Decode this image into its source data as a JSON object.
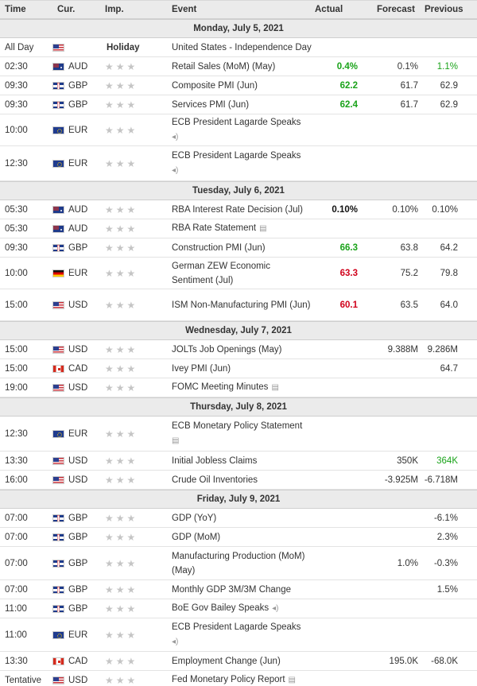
{
  "header": {
    "time": "Time",
    "cur": "Cur.",
    "imp": "Imp.",
    "event": "Event",
    "actual": "Actual",
    "forecast": "Forecast",
    "previous": "Previous"
  },
  "days": [
    {
      "label": "Monday, July 5, 2021",
      "rows": [
        {
          "time": "All Day",
          "flag": "us",
          "cur": "",
          "holiday": "Holiday",
          "event": "United States - Independence Day",
          "actual": "",
          "actual_style": "",
          "forecast": "",
          "previous": "",
          "prev_style": "",
          "icon": "",
          "h": 24
        },
        {
          "time": "02:30",
          "flag": "au",
          "cur": "AUD",
          "event": "Retail Sales (MoM) (May)",
          "actual": "0.4%",
          "actual_style": "green",
          "forecast": "0.1%",
          "previous": "1.1%",
          "prev_style": "green-plain",
          "icon": "",
          "h": 24
        },
        {
          "time": "09:30",
          "flag": "gb",
          "cur": "GBP",
          "event": "Composite PMI (Jun)",
          "actual": "62.2",
          "actual_style": "green",
          "forecast": "61.7",
          "previous": "62.9",
          "prev_style": "",
          "icon": "",
          "h": 24
        },
        {
          "time": "09:30",
          "flag": "gb",
          "cur": "GBP",
          "event": "Services PMI (Jun)",
          "actual": "62.4",
          "actual_style": "green",
          "forecast": "61.7",
          "previous": "62.9",
          "prev_style": "",
          "icon": "",
          "h": 24
        },
        {
          "time": "10:00",
          "flag": "eu",
          "cur": "EUR",
          "event": "ECB President Lagarde Speaks",
          "actual": "",
          "actual_style": "",
          "forecast": "",
          "previous": "",
          "prev_style": "",
          "icon": "speaker",
          "h": 40
        },
        {
          "time": "12:30",
          "flag": "eu",
          "cur": "EUR",
          "event": "ECB President Lagarde Speaks",
          "actual": "",
          "actual_style": "",
          "forecast": "",
          "previous": "",
          "prev_style": "",
          "icon": "speaker",
          "h": 44
        }
      ]
    },
    {
      "label": "Tuesday, July 6, 2021",
      "rows": [
        {
          "time": "05:30",
          "flag": "au",
          "cur": "AUD",
          "event": "RBA Interest Rate Decision (Jul)",
          "actual": "0.10%",
          "actual_style": "bold",
          "forecast": "0.10%",
          "previous": "0.10%",
          "prev_style": "",
          "icon": "",
          "h": 24
        },
        {
          "time": "05:30",
          "flag": "au",
          "cur": "AUD",
          "event": "RBA Rate Statement",
          "actual": "",
          "actual_style": "",
          "forecast": "",
          "previous": "",
          "prev_style": "",
          "icon": "doc",
          "h": 24
        },
        {
          "time": "09:30",
          "flag": "gb",
          "cur": "GBP",
          "event": "Construction PMI (Jun)",
          "actual": "66.3",
          "actual_style": "green",
          "forecast": "63.8",
          "previous": "64.2",
          "prev_style": "",
          "icon": "",
          "h": 24
        },
        {
          "time": "10:00",
          "flag": "de",
          "cur": "EUR",
          "event": "German ZEW Economic Sentiment (Jul)",
          "actual": "63.3",
          "actual_style": "red",
          "forecast": "75.2",
          "previous": "79.8",
          "prev_style": "",
          "icon": "",
          "h": 40
        },
        {
          "time": "15:00",
          "flag": "us",
          "cur": "USD",
          "event": "ISM Non-Manufacturing PMI (Jun)",
          "actual": "60.1",
          "actual_style": "red",
          "forecast": "63.5",
          "previous": "64.0",
          "prev_style": "",
          "icon": "",
          "h": 40
        }
      ]
    },
    {
      "label": "Wednesday, July 7, 2021",
      "rows": [
        {
          "time": "15:00",
          "flag": "us",
          "cur": "USD",
          "event": "JOLTs Job Openings (May)",
          "actual": "",
          "actual_style": "",
          "forecast": "9.388M",
          "previous": "9.286M",
          "prev_style": "",
          "icon": "",
          "h": 24
        },
        {
          "time": "15:00",
          "flag": "ca",
          "cur": "CAD",
          "event": "Ivey PMI (Jun)",
          "actual": "",
          "actual_style": "",
          "forecast": "",
          "previous": "64.7",
          "prev_style": "",
          "icon": "",
          "h": 24
        },
        {
          "time": "19:00",
          "flag": "us",
          "cur": "USD",
          "event": "FOMC Meeting Minutes",
          "actual": "",
          "actual_style": "",
          "forecast": "",
          "previous": "",
          "prev_style": "",
          "icon": "doc",
          "h": 24
        }
      ]
    },
    {
      "label": "Thursday, July 8, 2021",
      "rows": [
        {
          "time": "12:30",
          "flag": "eu",
          "cur": "EUR",
          "event": "ECB Monetary Policy Statement",
          "actual": "",
          "actual_style": "",
          "forecast": "",
          "previous": "",
          "prev_style": "",
          "icon": "doc",
          "h": 44
        },
        {
          "time": "13:30",
          "flag": "us",
          "cur": "USD",
          "event": "Initial Jobless Claims",
          "actual": "",
          "actual_style": "",
          "forecast": "350K",
          "previous": "364K",
          "prev_style": "green-plain",
          "icon": "",
          "h": 24
        },
        {
          "time": "16:00",
          "flag": "us",
          "cur": "USD",
          "event": "Crude Oil Inventories",
          "actual": "",
          "actual_style": "",
          "forecast": "-3.925M",
          "previous": "-6.718M",
          "prev_style": "",
          "icon": "",
          "h": 24
        }
      ]
    },
    {
      "label": "Friday, July 9, 2021",
      "rows": [
        {
          "time": "07:00",
          "flag": "gb",
          "cur": "GBP",
          "event": "GDP (YoY)",
          "actual": "",
          "actual_style": "",
          "forecast": "",
          "previous": "-6.1%",
          "prev_style": "",
          "icon": "",
          "h": 24
        },
        {
          "time": "07:00",
          "flag": "gb",
          "cur": "GBP",
          "event": "GDP (MoM)",
          "actual": "",
          "actual_style": "",
          "forecast": "",
          "previous": "2.3%",
          "prev_style": "",
          "icon": "",
          "h": 24
        },
        {
          "time": "07:00",
          "flag": "gb",
          "cur": "GBP",
          "event": "Manufacturing Production (MoM) (May)",
          "actual": "",
          "actual_style": "",
          "forecast": "1.0%",
          "previous": "-0.3%",
          "prev_style": "",
          "icon": "",
          "h": 42
        },
        {
          "time": "07:00",
          "flag": "gb",
          "cur": "GBP",
          "event": "Monthly GDP 3M/3M Change",
          "actual": "",
          "actual_style": "",
          "forecast": "",
          "previous": "1.5%",
          "prev_style": "",
          "icon": "",
          "h": 24
        },
        {
          "time": "11:00",
          "flag": "gb",
          "cur": "GBP",
          "event": "BoE Gov Bailey Speaks",
          "actual": "",
          "actual_style": "",
          "forecast": "",
          "previous": "",
          "prev_style": "",
          "icon": "speaker",
          "h": 24
        },
        {
          "time": "11:00",
          "flag": "eu",
          "cur": "EUR",
          "event": "ECB President Lagarde Speaks",
          "actual": "",
          "actual_style": "",
          "forecast": "",
          "previous": "",
          "prev_style": "",
          "icon": "speaker",
          "h": 42
        },
        {
          "time": "13:30",
          "flag": "ca",
          "cur": "CAD",
          "event": "Employment Change (Jun)",
          "actual": "",
          "actual_style": "",
          "forecast": "195.0K",
          "previous": "-68.0K",
          "prev_style": "",
          "icon": "",
          "h": 24
        },
        {
          "time": "Tentative",
          "flag": "us",
          "cur": "USD",
          "event": "Fed Monetary Policy Report",
          "actual": "",
          "actual_style": "",
          "forecast": "",
          "previous": "",
          "prev_style": "",
          "icon": "doc",
          "h": 24
        }
      ]
    }
  ],
  "icons": {
    "speaker": "speaker-icon",
    "doc": "document-icon",
    "star": "star-icon"
  },
  "colors": {
    "green": "#1aa31a",
    "red": "#d0021b",
    "header_bg": "#ebebeb"
  }
}
